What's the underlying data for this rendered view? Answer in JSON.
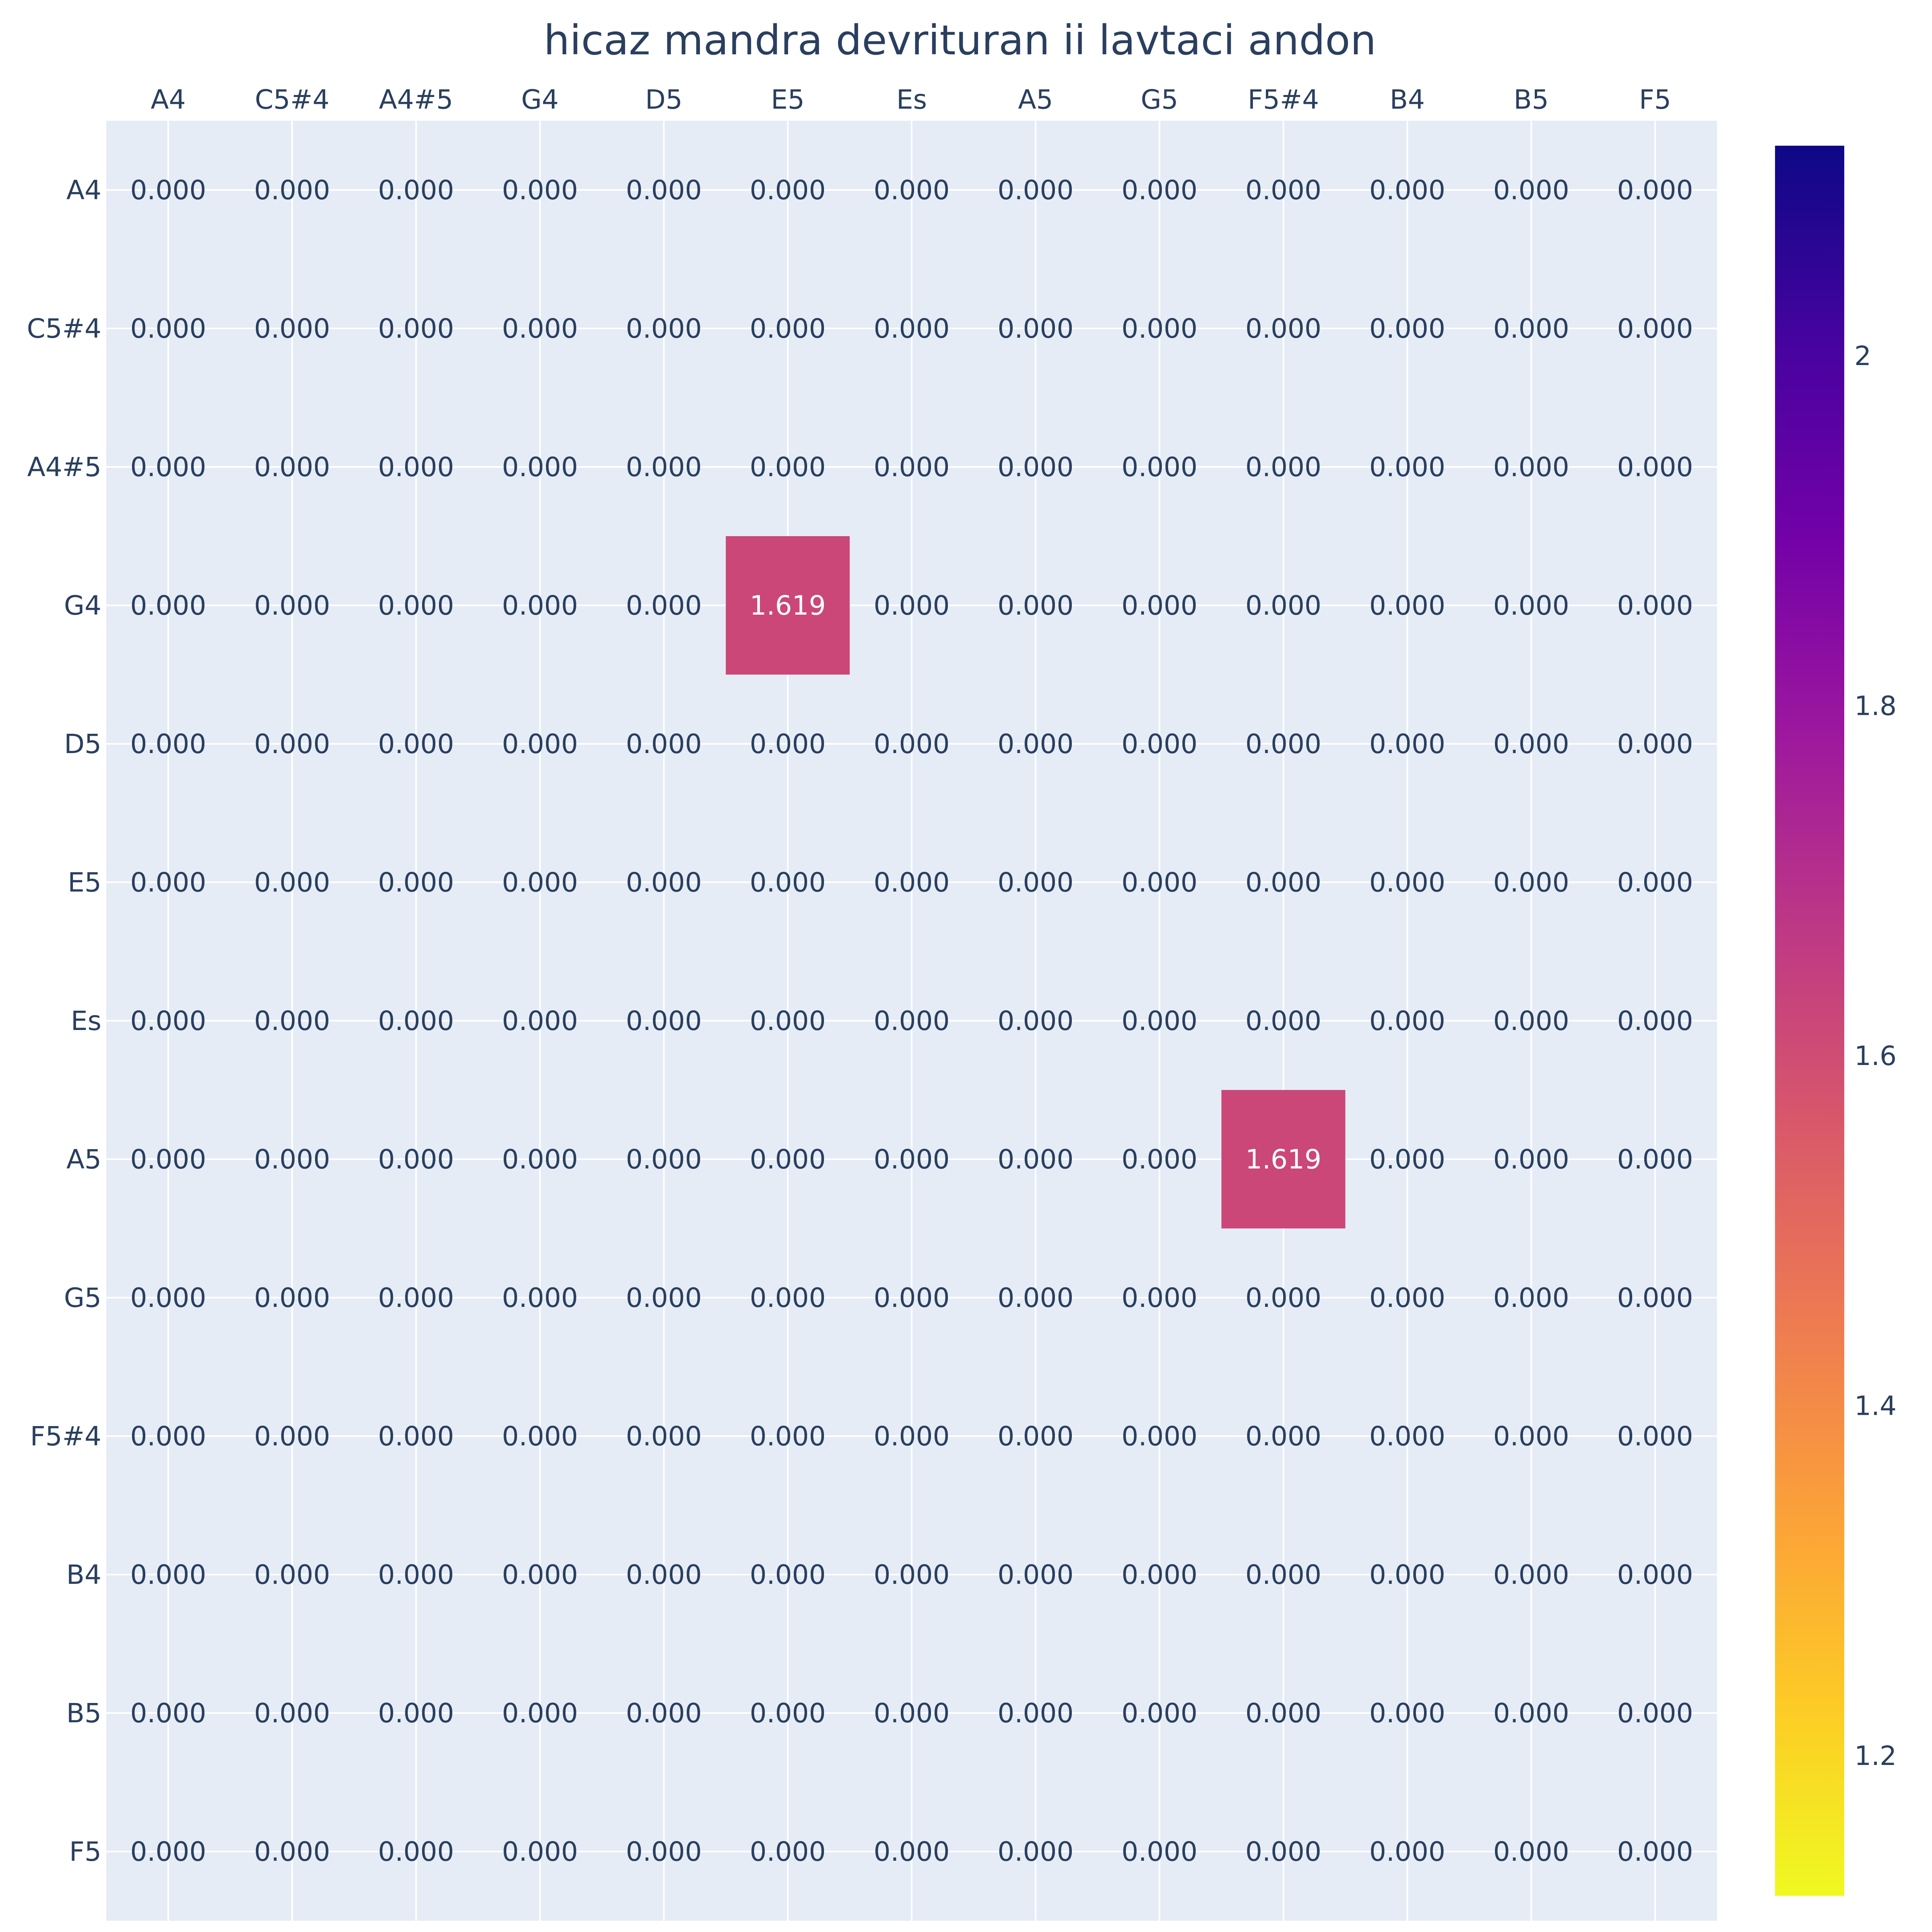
{
  "chart_data": {
    "type": "heatmap",
    "title": "hicaz mandra devrituran ii  lavtaci andon",
    "x_labels": [
      "A4",
      "C5#4",
      "A4#5",
      "G4",
      "D5",
      "E5",
      "Es",
      "A5",
      "G5",
      "F5#4",
      "B4",
      "B5",
      "F5"
    ],
    "y_labels": [
      "A4",
      "C5#4",
      "A4#5",
      "G4",
      "D5",
      "E5",
      "Es",
      "A5",
      "G5",
      "F5#4",
      "B4",
      "B5",
      "F5"
    ],
    "values": [
      [
        0,
        0,
        0,
        0,
        0,
        0,
        0,
        0,
        0,
        0,
        0,
        0,
        0
      ],
      [
        0,
        0,
        0,
        0,
        0,
        0,
        0,
        0,
        0,
        0,
        0,
        0,
        0
      ],
      [
        0,
        0,
        0,
        0,
        0,
        0,
        0,
        0,
        0,
        0,
        0,
        0,
        0
      ],
      [
        0,
        0,
        0,
        0,
        0,
        1.619,
        0,
        0,
        0,
        0,
        0,
        0,
        0
      ],
      [
        0,
        0,
        0,
        0,
        0,
        0,
        0,
        0,
        0,
        0,
        0,
        0,
        0
      ],
      [
        0,
        0,
        0,
        0,
        0,
        0,
        0,
        0,
        0,
        0,
        0,
        0,
        0
      ],
      [
        0,
        0,
        0,
        0,
        0,
        0,
        0,
        0,
        0,
        0,
        0,
        0,
        0
      ],
      [
        0,
        0,
        0,
        0,
        0,
        0,
        0,
        0,
        0,
        1.619,
        0,
        0,
        0
      ],
      [
        0,
        0,
        0,
        0,
        0,
        0,
        0,
        0,
        0,
        0,
        0,
        0,
        0
      ],
      [
        0,
        0,
        0,
        0,
        0,
        0,
        0,
        0,
        0,
        0,
        0,
        0,
        0
      ],
      [
        0,
        0,
        0,
        0,
        0,
        0,
        0,
        0,
        0,
        0,
        0,
        0,
        0
      ],
      [
        0,
        0,
        0,
        0,
        0,
        0,
        0,
        0,
        0,
        0,
        0,
        0,
        0
      ],
      [
        0,
        0,
        0,
        0,
        0,
        0,
        0,
        0,
        0,
        0,
        0,
        0,
        0
      ]
    ],
    "value_format": "0.000",
    "zero_cells_transparent": true,
    "colorscale": "plasma_reversed",
    "colorbar": {
      "range": [
        1.12,
        2.12
      ],
      "tick_values": [
        1.2,
        1.4,
        1.6,
        1.8,
        2
      ],
      "tick_labels": [
        "1.2",
        "1.4",
        "1.6",
        "1.8",
        "2"
      ]
    },
    "x_axis_position": "top",
    "y_axis_reversed": true,
    "grid": true,
    "colors": {
      "plot_bg": "#e5ecf6",
      "grid": "#ffffff",
      "text": "#2a3f5f",
      "colorscale_stops": [
        "#f0f921",
        "#fdca26",
        "#fb9f3a",
        "#ed7953",
        "#d8576b",
        "#bd3786",
        "#9c179e",
        "#7201a8",
        "#46039f",
        "#0d0887"
      ]
    }
  }
}
